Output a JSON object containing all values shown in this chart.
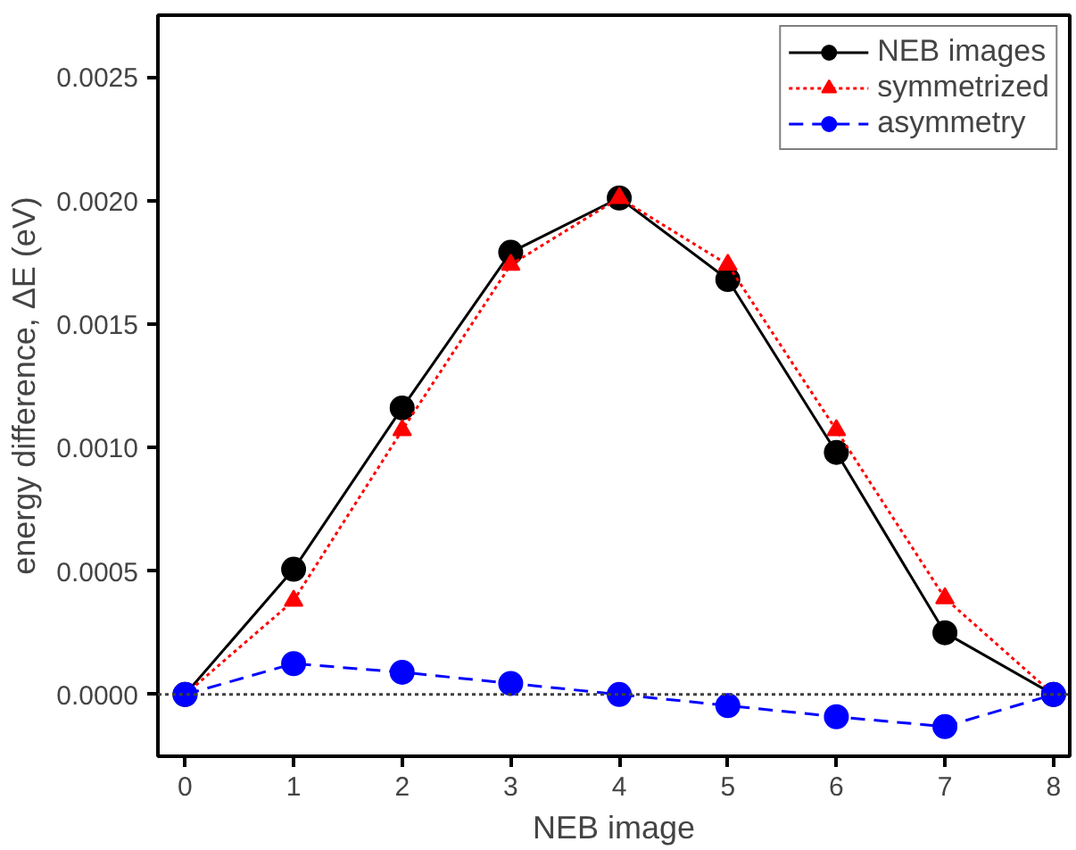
{
  "chart_data": {
    "type": "line",
    "xlabel": "NEB image",
    "ylabel": "energy difference, ΔE (eV)",
    "x": [
      0,
      1,
      2,
      3,
      4,
      5,
      6,
      7,
      8
    ],
    "xlim": [
      -0.25,
      8.15
    ],
    "xticks": [
      0,
      1,
      2,
      3,
      4,
      5,
      6,
      7,
      8
    ],
    "ylim": [
      -0.00025,
      0.00275
    ],
    "yticks": [
      {
        "value": 0,
        "label": "0.0000"
      },
      {
        "value": 0.0005,
        "label": "0.0005"
      },
      {
        "value": 0.001,
        "label": "0.0010"
      },
      {
        "value": 0.0015,
        "label": "0.0015"
      },
      {
        "value": 0.002,
        "label": "0.0020"
      },
      {
        "value": 0.0025,
        "label": "0.0025"
      }
    ],
    "series": [
      {
        "name": "NEB images",
        "color": "#000000",
        "marker": "circle",
        "line_style": "solid",
        "values": [
          0,
          0.000507,
          0.00116,
          0.00179,
          0.00201,
          0.00168,
          0.00098,
          0.00025,
          0
        ]
      },
      {
        "name": "symmetrized",
        "color": "#ff0000",
        "marker": "triangle",
        "line_style": "dotted",
        "values": [
          0,
          0.00038,
          0.00107,
          0.00174,
          0.00201,
          0.00174,
          0.00107,
          0.00039,
          0
        ]
      },
      {
        "name": "asymmetry",
        "color": "#0000ff",
        "marker": "circle",
        "line_style": "dashed",
        "values": [
          0,
          0.000125,
          9e-05,
          4.5e-05,
          0,
          -4.5e-05,
          -9e-05,
          -0.00013,
          0
        ]
      }
    ],
    "ref_lines": [
      {
        "axis": "y",
        "value": 0,
        "color": "#404040",
        "line_style": "dotted"
      }
    ],
    "grid": false,
    "legend": "top right"
  }
}
